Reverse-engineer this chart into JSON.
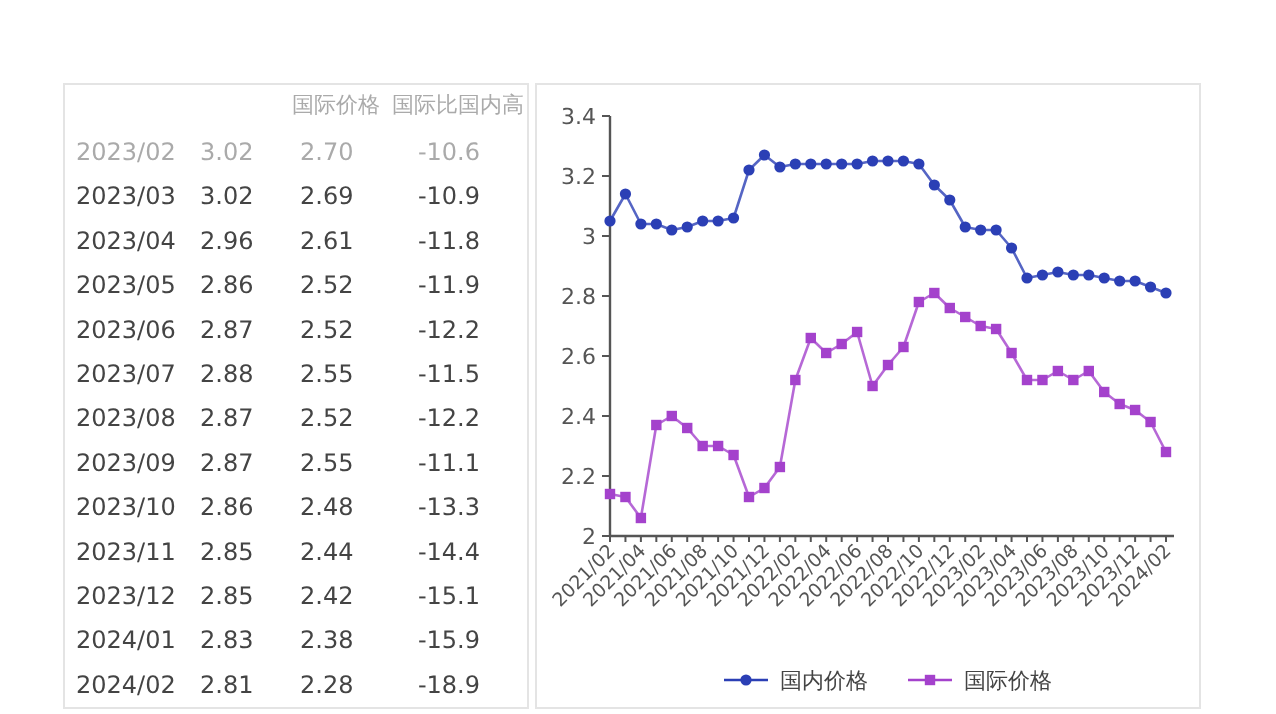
{
  "chart_data": {
    "type": "line",
    "categories": [
      "2021/02",
      null,
      "2021/04",
      null,
      "2021/06",
      null,
      "2021/08",
      null,
      "2021/10",
      null,
      "2021/12",
      null,
      "2022/02",
      null,
      "2022/04",
      null,
      "2022/06",
      null,
      "2022/08",
      null,
      "2022/10",
      null,
      "2022/12",
      null,
      "2023/02",
      null,
      "2023/04",
      null,
      "2023/06",
      null,
      "2023/08",
      null,
      "2023/10",
      null,
      "2023/12",
      null,
      "2024/02"
    ],
    "series": [
      {
        "name": "国内价格",
        "color": "#2b3fb5",
        "marker": "circle",
        "values": [
          3.05,
          3.14,
          3.04,
          3.04,
          3.02,
          3.03,
          3.05,
          3.05,
          3.06,
          3.22,
          3.27,
          3.23,
          3.24,
          3.24,
          3.24,
          3.24,
          3.24,
          3.25,
          3.25,
          3.25,
          3.24,
          3.17,
          3.12,
          3.03,
          3.02,
          3.02,
          2.96,
          2.86,
          2.87,
          2.88,
          2.87,
          2.87,
          2.86,
          2.85,
          2.85,
          2.83,
          2.81
        ]
      },
      {
        "name": "国际价格",
        "color": "#a442cc",
        "marker": "square",
        "values": [
          2.14,
          2.13,
          2.06,
          2.37,
          2.4,
          2.36,
          2.3,
          2.3,
          2.27,
          2.13,
          2.16,
          2.23,
          2.52,
          2.66,
          2.61,
          2.64,
          2.68,
          2.5,
          2.57,
          2.63,
          2.78,
          2.81,
          2.76,
          2.73,
          2.7,
          2.69,
          2.61,
          2.52,
          2.52,
          2.55,
          2.52,
          2.55,
          2.48,
          2.44,
          2.42,
          2.38,
          2.28
        ]
      }
    ],
    "ylim": [
      2,
      3.4
    ],
    "yticks": [
      2,
      2.2,
      2.4,
      2.6,
      2.8,
      3,
      3.2,
      3.4
    ],
    "legend": "bottom",
    "annotations": [
      "国际价格",
      "国际比国内高",
      "2023/02",
      "3.02",
      "2.70",
      "-10.6",
      "2023/03",
      "3.02",
      "2.69",
      "-10.9",
      "2023/04",
      "2.96",
      "2.61",
      "-11.8",
      "2023/05",
      "2.86",
      "2.52",
      "-11.9",
      "2023/06",
      "2.87",
      "2.52",
      "-12.2",
      "2023/07",
      "2.88",
      "2.55",
      "-11.5",
      "2023/08",
      "2.87",
      "2.52",
      "-12.2",
      "2023/09",
      "2.87",
      "2.55",
      "-11.1",
      "2023/10",
      "2.86",
      "2.48",
      "-13.3",
      "2023/11",
      "2.85",
      "2.44",
      "-14.4",
      "2023/12",
      "2.85",
      "2.42",
      "-15.1",
      "2024/01",
      "2.83",
      "2.38",
      "-15.9",
      "2024/02",
      "2.81",
      "2.28",
      "-18.9"
    ]
  }
}
